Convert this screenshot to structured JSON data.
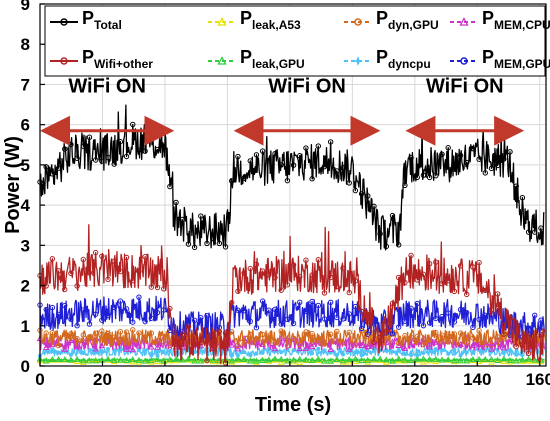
{
  "chart_data": {
    "type": "line",
    "xlabel": "Time (s)",
    "ylabel": "Power (W)",
    "xlim": [
      0,
      162
    ],
    "ylim": [
      0,
      9
    ],
    "xticks": [
      0,
      20,
      40,
      60,
      80,
      100,
      120,
      140,
      160
    ],
    "yticks": [
      0,
      1,
      2,
      3,
      4,
      5,
      6,
      7,
      8,
      9
    ],
    "grid": true,
    "legend_position": "top",
    "annotations": [
      {
        "text": "WiFi ON",
        "x_start": 0,
        "x_end": 43,
        "y": 5.85
      },
      {
        "text": "WiFi ON",
        "x_start": 62,
        "x_end": 109,
        "y": 5.85
      },
      {
        "text": "WiFi ON",
        "x_start": 117,
        "x_end": 155,
        "y": 5.85
      }
    ],
    "wifi_on_intervals": [
      [
        0,
        43
      ],
      [
        62,
        109
      ],
      [
        117,
        155
      ]
    ],
    "series": [
      {
        "key": "total",
        "name": "P",
        "sub": "Total",
        "color": "#000000",
        "marker": "o",
        "on": 5.2,
        "off": 3.3,
        "noise": 0.45,
        "x": [
          0,
          10,
          20,
          30,
          40,
          43,
          50,
          60,
          62,
          70,
          80,
          90,
          100,
          109,
          115,
          117,
          130,
          140,
          150,
          155,
          160
        ],
        "values": [
          4.4,
          5.3,
          5.3,
          5.6,
          5.5,
          3.7,
          3.3,
          3.4,
          4.9,
          4.9,
          5.0,
          5.1,
          4.9,
          3.3,
          3.4,
          5.0,
          5.0,
          5.2,
          5.1,
          3.6,
          3.4
        ]
      },
      {
        "key": "wifi",
        "name": "P",
        "sub": "Wifi+other",
        "color": "#b22222",
        "marker": "o",
        "on": 2.3,
        "off": 0.5,
        "noise": 0.45,
        "x": [
          0,
          10,
          20,
          40,
          43,
          60,
          62,
          80,
          100,
          109,
          117,
          140,
          155,
          160
        ],
        "values": [
          2.2,
          2.3,
          2.4,
          2.3,
          0.6,
          0.5,
          2.2,
          2.3,
          2.2,
          0.5,
          2.3,
          2.2,
          0.5,
          0.5
        ]
      },
      {
        "key": "leakA53",
        "name": "P",
        "sub": "leak,A53",
        "color": "#e8e000",
        "marker": "^",
        "on": 0.12,
        "off": 0.1,
        "noise": 0.03,
        "x": [
          0,
          160
        ],
        "values": [
          0.12,
          0.12
        ]
      },
      {
        "key": "leakGPU",
        "name": "P",
        "sub": "leak,GPU",
        "color": "#2ecc40",
        "marker": "^",
        "on": 0.15,
        "off": 0.13,
        "noise": 0.03,
        "x": [
          0,
          160
        ],
        "values": [
          0.15,
          0.15
        ]
      },
      {
        "key": "dynGPU",
        "name": "P",
        "sub": "dyn,GPU",
        "color": "#d2691e",
        "marker": "o",
        "on": 0.7,
        "off": 0.55,
        "noise": 0.2,
        "x": [
          0,
          160
        ],
        "values": [
          0.7,
          0.7
        ]
      },
      {
        "key": "dyncpu",
        "name": "P",
        "sub": "dyncpu",
        "color": "#4fc3f7",
        "marker": "*",
        "on": 0.35,
        "off": 0.3,
        "noise": 0.1,
        "x": [
          0,
          160
        ],
        "values": [
          0.35,
          0.35
        ]
      },
      {
        "key": "memCPU",
        "name": "P",
        "sub": "MEM,CPU",
        "color": "#cc33cc",
        "marker": "^",
        "on": 0.55,
        "off": 0.5,
        "noise": 0.15,
        "x": [
          0,
          160
        ],
        "values": [
          0.55,
          0.55
        ]
      },
      {
        "key": "memGPU",
        "name": "P",
        "sub": "MEM,GPU",
        "color": "#1f1fd6",
        "marker": "o",
        "on": 1.35,
        "off": 1.0,
        "noise": 0.35,
        "x": [
          0,
          10,
          20,
          40,
          43,
          60,
          62,
          80,
          100,
          109,
          117,
          140,
          155,
          160
        ],
        "values": [
          1.2,
          1.3,
          1.4,
          1.4,
          1.0,
          1.0,
          1.3,
          1.3,
          1.3,
          1.0,
          1.3,
          1.3,
          1.0,
          1.0
        ]
      }
    ]
  }
}
